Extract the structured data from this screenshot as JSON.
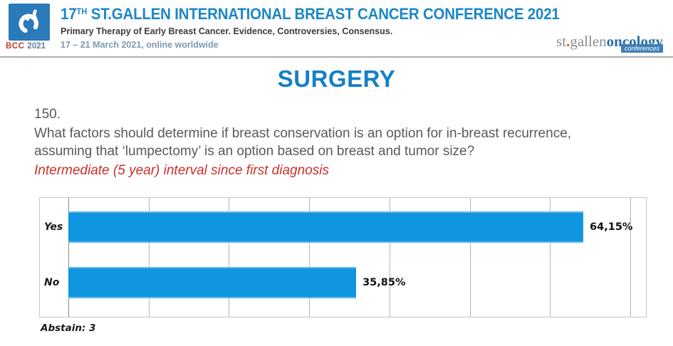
{
  "header": {
    "logo": {
      "acronym": "BCC",
      "year": "2021"
    },
    "title_prefix": "17",
    "title_sup": "TH",
    "title_rest": " ST.GALLEN INTERNATIONAL BREAST CANCER CONFERENCE 2021",
    "subtitle": "Primary Therapy of Early Breast Cancer. Evidence, Controversies, Consensus.",
    "dates": "17 – 21 March 2021, online worldwide",
    "brand": {
      "part1": "st",
      "dot": ".",
      "part2": "gallen",
      "part3": "oncology",
      "badge": "conferences"
    }
  },
  "main": {
    "section_title": "SURGERY",
    "question_number": "150.",
    "question": "What factors should determine if breast conservation is an option for in-breast recurrence, assuming that ‘lumpectomy’ is an option based on breast and tumor size?",
    "highlight": "Intermediate (5 year) interval since first diagnosis",
    "abstain": "Abstain: 3"
  },
  "chart_data": {
    "type": "bar",
    "orientation": "horizontal",
    "categories": [
      "Yes",
      "No"
    ],
    "values": [
      64.15,
      35.85
    ],
    "value_labels": [
      "64,15%",
      "35,85%"
    ],
    "xlim": [
      0,
      70
    ],
    "gridline_interval": 10,
    "grid": true,
    "legend": "none",
    "bar_color": "#1095E0"
  },
  "colors": {
    "accent_blue": "#1B87C6",
    "bar_blue": "#1095E0",
    "highlight_red": "#C9302C",
    "text_gray": "#58595B",
    "logo_blue": "#2B7AB9"
  }
}
